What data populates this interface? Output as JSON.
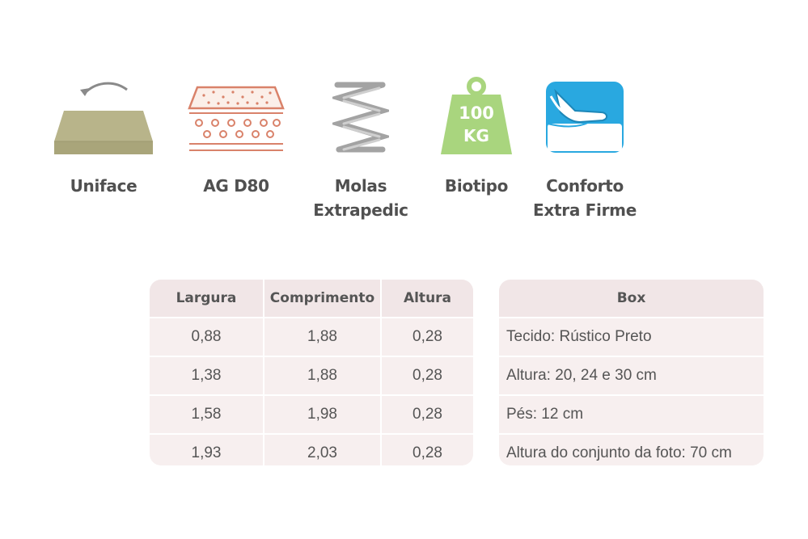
{
  "features": [
    {
      "label": "Uniface",
      "icon": "mattress-flip-icon"
    },
    {
      "label": "AG D80",
      "icon": "foam-layers-icon"
    },
    {
      "label_line1": "Molas",
      "label_line2": "Extrapedic",
      "icon": "spring-icon"
    },
    {
      "label": "Biotipo",
      "icon": "weight-100kg-icon",
      "weight_line1": "100",
      "weight_line2": "KG"
    },
    {
      "label_line1": "Conforto",
      "label_line2": "Extra Firme",
      "icon": "hand-press-icon"
    }
  ],
  "dimensions_table": {
    "headers": [
      "Largura",
      "Comprimento",
      "Altura"
    ],
    "rows": [
      [
        "0,88",
        "1,88",
        "0,28"
      ],
      [
        "1,38",
        "1,88",
        "0,28"
      ],
      [
        "1,58",
        "1,98",
        "0,28"
      ],
      [
        "1,93",
        "2,03",
        "0,28"
      ]
    ]
  },
  "box_table": {
    "header": "Box",
    "rows": [
      "Tecido: Rústico Preto",
      "Altura: 20, 24 e 30 cm",
      "Pés: 12 cm",
      "Altura do conjunto da foto: 70 cm"
    ]
  },
  "colors": {
    "olive": "#b8b48a",
    "foam_outline": "#d9826a",
    "spring_gray": "#9e9e9e",
    "weight_green": "#a9d57e",
    "comfort_blue": "#29a8e0",
    "table_shade": "#f1e6e7"
  }
}
